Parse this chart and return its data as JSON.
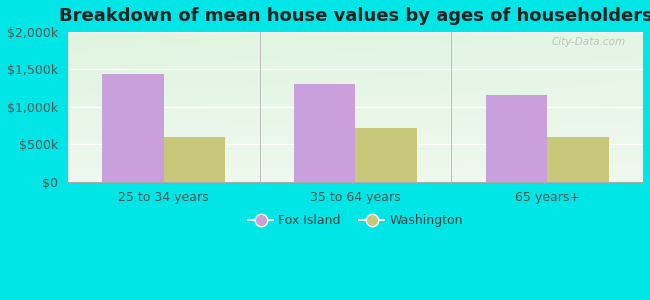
{
  "title": "Breakdown of mean house values by ages of householders",
  "categories": [
    "25 to 34 years",
    "35 to 64 years",
    "65 years+"
  ],
  "fox_island_values": [
    1440000,
    1300000,
    1160000
  ],
  "washington_values": [
    600000,
    720000,
    600000
  ],
  "fox_island_color": "#c9a0dc",
  "washington_color": "#c8c87a",
  "bar_width": 0.32,
  "ylim": [
    0,
    2000000
  ],
  "yticks": [
    0,
    500000,
    1000000,
    1500000,
    2000000
  ],
  "ytick_labels": [
    "$0",
    "$500k",
    "$1,000k",
    "$1,500k",
    "$2,000k"
  ],
  "background_color": "#00e5e5",
  "legend_labels": [
    "Fox Island",
    "Washington"
  ],
  "watermark": "City-Data.com",
  "title_fontsize": 13,
  "axis_label_fontsize": 9,
  "tick_label_fontsize": 9
}
